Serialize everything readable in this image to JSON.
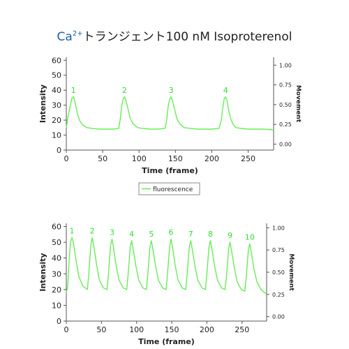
{
  "title": {
    "ca": "Ca",
    "charge": "2+",
    "rest": "トランジェント100 nM Isoproterenol"
  },
  "colors": {
    "line": "#66ee55",
    "peak_label": "#33dd33",
    "axis": "#555555",
    "text": "#222222",
    "title_ca": "#1f5fa8"
  },
  "chart_data": [
    {
      "type": "line",
      "xlabel": "Time (frame)",
      "ylabel": "Intensity",
      "y2label": "Movement",
      "xlim": [
        0,
        285
      ],
      "ylim": [
        0,
        62
      ],
      "y2lim": [
        -0.075,
        1.1
      ],
      "xticks": [
        0,
        50,
        100,
        150,
        200,
        250
      ],
      "yticks": [
        0,
        10,
        20,
        30,
        40,
        50,
        60
      ],
      "y2ticks": [
        "0.00",
        "0.25",
        "0.50",
        "0.75",
        "1.00"
      ],
      "legend": "fluorescence",
      "legend_position": "bottom",
      "peak_labels": [
        "1",
        "2",
        "3",
        "4"
      ],
      "series": [
        {
          "name": "fluorescence",
          "x": [
            0,
            3,
            6,
            8,
            10,
            12,
            15,
            18,
            22,
            28,
            35,
            45,
            55,
            65,
            72,
            74,
            76,
            78,
            80,
            82,
            85,
            88,
            92,
            98,
            105,
            115,
            125,
            136,
            138,
            140,
            142,
            144,
            146,
            149,
            152,
            156,
            162,
            170,
            180,
            190,
            200,
            210,
            213,
            215,
            217,
            219,
            221,
            223,
            226,
            229,
            233,
            240,
            250,
            260,
            270,
            285
          ],
          "y": [
            15,
            24,
            31,
            35,
            35.5,
            32,
            25,
            20,
            17,
            15,
            14.5,
            14,
            14,
            14,
            14.5,
            20,
            29,
            34,
            35.5,
            33,
            27,
            21,
            17.5,
            15,
            14.5,
            14,
            14,
            14.5,
            20,
            29,
            34,
            35.5,
            33,
            27,
            21,
            17.5,
            15,
            14.5,
            14,
            14,
            14,
            14.5,
            20,
            28,
            34,
            35.5,
            33,
            27,
            21,
            17.5,
            15,
            14.5,
            14,
            14,
            14,
            13.5
          ]
        }
      ]
    },
    {
      "type": "line",
      "xlabel": "Time (frame)",
      "ylabel": "Intensity",
      "y2label": "Movement",
      "xlim": [
        0,
        285
      ],
      "ylim": [
        0,
        62
      ],
      "y2lim": [
        -0.05,
        1.05
      ],
      "xticks": [
        0,
        50,
        100,
        150,
        200,
        250
      ],
      "yticks": [
        0,
        10,
        20,
        30,
        40,
        50,
        60
      ],
      "y2ticks": [
        "0.00",
        "0.25",
        "0.50",
        "0.75",
        "1.00"
      ],
      "peak_labels": [
        "1",
        "2",
        "3",
        "4",
        "5",
        "6",
        "7",
        "8",
        "9",
        "10"
      ],
      "series": [
        {
          "name": "fluorescence",
          "x": [
            0,
            2,
            4,
            6,
            8,
            10,
            14,
            18,
            24,
            30,
            32,
            35,
            37,
            39,
            43,
            47,
            53,
            58,
            60,
            63,
            65,
            67,
            71,
            75,
            81,
            86,
            88,
            91,
            93,
            95,
            99,
            103,
            109,
            114,
            116,
            119,
            121,
            123,
            127,
            131,
            137,
            142,
            144,
            147,
            149,
            151,
            155,
            159,
            165,
            170,
            172,
            175,
            177,
            179,
            183,
            187,
            193,
            198,
            200,
            203,
            205,
            207,
            211,
            215,
            221,
            226,
            228,
            231,
            233,
            235,
            239,
            243,
            249,
            254,
            256,
            259,
            261,
            263,
            267,
            271,
            277,
            285
          ],
          "y": [
            18,
            22,
            38,
            50,
            53,
            50,
            38,
            28,
            22,
            20,
            30,
            48,
            53,
            48,
            36,
            26,
            21,
            20,
            30,
            48,
            52,
            47,
            35,
            26,
            21,
            20,
            30,
            47,
            51,
            46,
            35,
            26,
            21,
            20,
            30,
            47,
            51,
            46,
            35,
            26,
            21,
            20,
            30,
            47,
            52,
            47,
            35,
            26,
            21,
            20,
            30,
            47,
            51,
            46,
            35,
            26,
            21,
            20,
            30,
            47,
            51,
            46,
            35,
            26,
            21,
            20,
            29,
            46,
            50,
            45,
            34,
            25,
            20,
            19,
            28,
            45,
            49,
            44,
            33,
            25,
            20,
            17
          ]
        }
      ]
    }
  ]
}
